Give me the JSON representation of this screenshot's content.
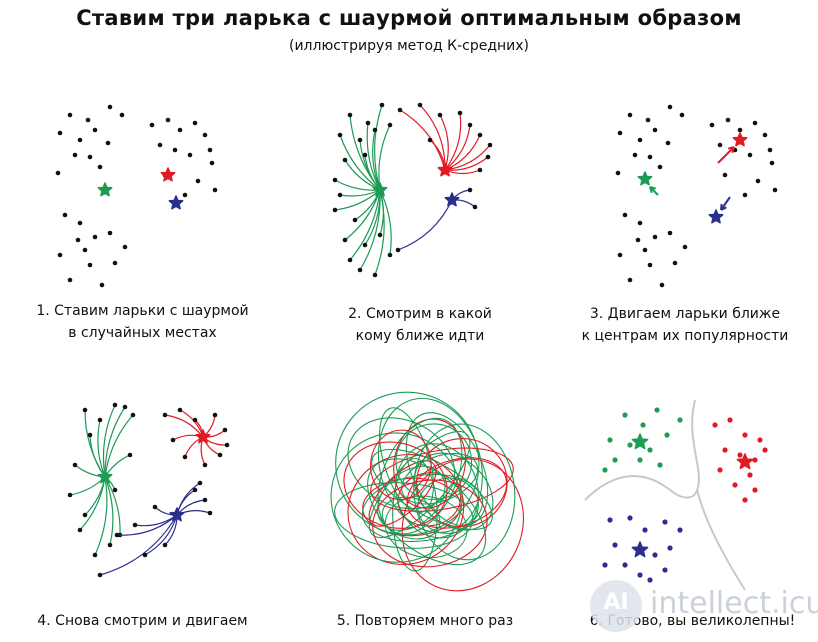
{
  "title": "Ставим три ларька с шаурмой оптимальным образом",
  "subtitle": "(иллюстрируя метод К-средних)",
  "colors": {
    "green": "#1e9b55",
    "red": "#e01b24",
    "blue": "#2b2f8c",
    "dot": "#111111",
    "boundary": "#c8c8c8"
  },
  "panels": [
    {
      "caption_line1": "1. Ставим ларьки с шаурмой",
      "caption_line2": "в случайных местах"
    },
    {
      "caption_line1": "2. Смотрим в какой",
      "caption_line2": "кому ближе идти"
    },
    {
      "caption_line1": "3. Двигаем ларьки ближе",
      "caption_line2": "к центрам их популярности"
    },
    {
      "caption_line1": "4. Снова смотрим и двигаем",
      "caption_line2": ""
    },
    {
      "caption_line1": "5. Повторяем много раз",
      "caption_line2": ""
    },
    {
      "caption_line1": "6. Готово, вы великолепны!",
      "caption_line2": ""
    }
  ],
  "watermark": {
    "logo_text": "AI",
    "site": "intellect.icu"
  }
}
